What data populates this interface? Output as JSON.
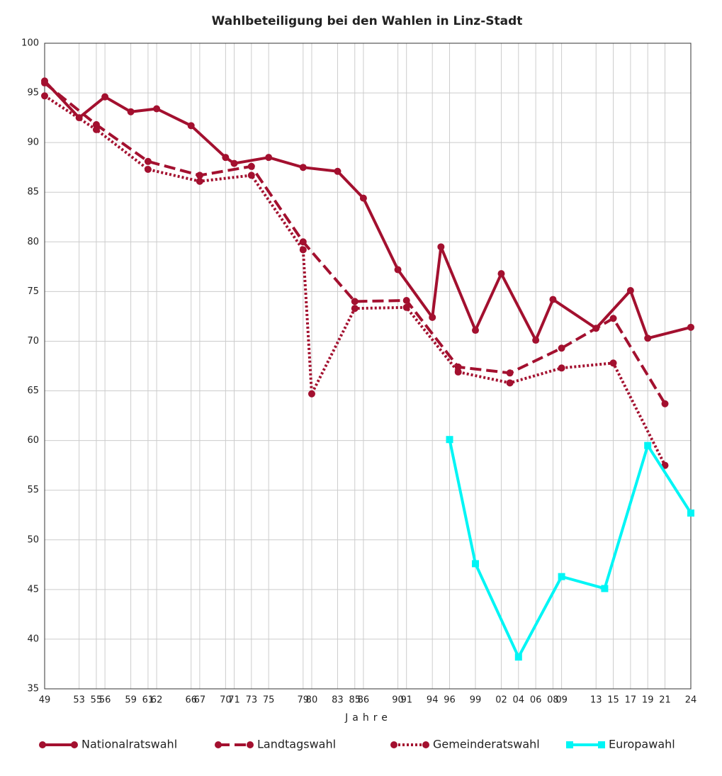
{
  "chart_data": {
    "type": "line",
    "title": "Wahlbeteiligung bei den Wahlen in Linz-Stadt",
    "x_label": "Jahre",
    "xlim": [
      1949,
      2024
    ],
    "ylim": [
      35,
      100
    ],
    "yticks": [
      35,
      40,
      45,
      50,
      55,
      60,
      65,
      70,
      75,
      80,
      85,
      90,
      95,
      100
    ],
    "xticks": [
      {
        "value": 1949,
        "label": "49"
      },
      {
        "value": 1953,
        "label": "53"
      },
      {
        "value": 1955,
        "label": "55"
      },
      {
        "value": 1956,
        "label": "56"
      },
      {
        "value": 1959,
        "label": "59"
      },
      {
        "value": 1961,
        "label": "61"
      },
      {
        "value": 1962,
        "label": "62"
      },
      {
        "value": 1966,
        "label": "66"
      },
      {
        "value": 1967,
        "label": "67"
      },
      {
        "value": 1970,
        "label": "70"
      },
      {
        "value": 1971,
        "label": "71"
      },
      {
        "value": 1973,
        "label": "73"
      },
      {
        "value": 1975,
        "label": "75"
      },
      {
        "value": 1979,
        "label": "79"
      },
      {
        "value": 1980,
        "label": "80"
      },
      {
        "value": 1983,
        "label": "83"
      },
      {
        "value": 1985,
        "label": "85"
      },
      {
        "value": 1986,
        "label": "86"
      },
      {
        "value": 1990,
        "label": "90"
      },
      {
        "value": 1991,
        "label": "91"
      },
      {
        "value": 1994,
        "label": "94"
      },
      {
        "value": 1996,
        "label": "96"
      },
      {
        "value": 1999,
        "label": "99"
      },
      {
        "value": 2002,
        "label": "02"
      },
      {
        "value": 2004,
        "label": "04"
      },
      {
        "value": 2006,
        "label": "06"
      },
      {
        "value": 2008,
        "label": "08"
      },
      {
        "value": 2009,
        "label": "09"
      },
      {
        "value": 2013,
        "label": "13"
      },
      {
        "value": 2015,
        "label": "15"
      },
      {
        "value": 2017,
        "label": "17"
      },
      {
        "value": 2019,
        "label": "19"
      },
      {
        "value": 2021,
        "label": "21"
      },
      {
        "value": 2024,
        "label": "24"
      }
    ],
    "grid": true,
    "legend": "bottom",
    "series": [
      {
        "name": "Nationalratswahl",
        "color": "#a3102f",
        "line_style": "solid",
        "marker": "circle",
        "x": [
          1949,
          1953,
          1956,
          1959,
          1962,
          1966,
          1970,
          1971,
          1975,
          1979,
          1983,
          1986,
          1990,
          1994,
          1995,
          1999,
          2002,
          2006,
          2008,
          2013,
          2017,
          2019,
          2024
        ],
        "values": [
          96.2,
          92.5,
          94.6,
          93.1,
          93.4,
          91.7,
          88.5,
          87.9,
          88.5,
          87.5,
          87.1,
          84.4,
          77.2,
          72.4,
          79.5,
          71.1,
          76.8,
          70.1,
          74.2,
          71.3,
          75.1,
          70.3,
          71.4
        ]
      },
      {
        "name": "Landtagswahl",
        "color": "#a3102f",
        "line_style": "dashed",
        "marker": "circle",
        "x": [
          1949,
          1955,
          1961,
          1967,
          1973,
          1979,
          1985,
          1991,
          1997,
          2003,
          2009,
          2015,
          2021
        ],
        "values": [
          96.0,
          91.8,
          88.1,
          86.7,
          87.6,
          80.0,
          74.0,
          74.1,
          67.4,
          66.8,
          69.3,
          72.3,
          63.7
        ]
      },
      {
        "name": "Gemeinderatswahl",
        "color": "#a3102f",
        "line_style": "dotted",
        "marker": "circle",
        "x": [
          1949,
          1955,
          1961,
          1967,
          1973,
          1979,
          1980,
          1985,
          1991,
          1997,
          2003,
          2009,
          2015,
          2021
        ],
        "values": [
          94.7,
          91.3,
          87.3,
          86.1,
          86.7,
          79.2,
          64.7,
          73.3,
          73.4,
          66.9,
          65.8,
          67.3,
          67.8,
          57.5
        ]
      },
      {
        "name": "Europawahl",
        "color": "#00f5f5",
        "line_style": "solid",
        "marker": "square",
        "x": [
          1996,
          1999,
          2004,
          2009,
          2014,
          2019,
          2024
        ],
        "values": [
          60.1,
          47.6,
          38.2,
          46.3,
          45.1,
          59.5,
          52.7
        ]
      }
    ]
  }
}
